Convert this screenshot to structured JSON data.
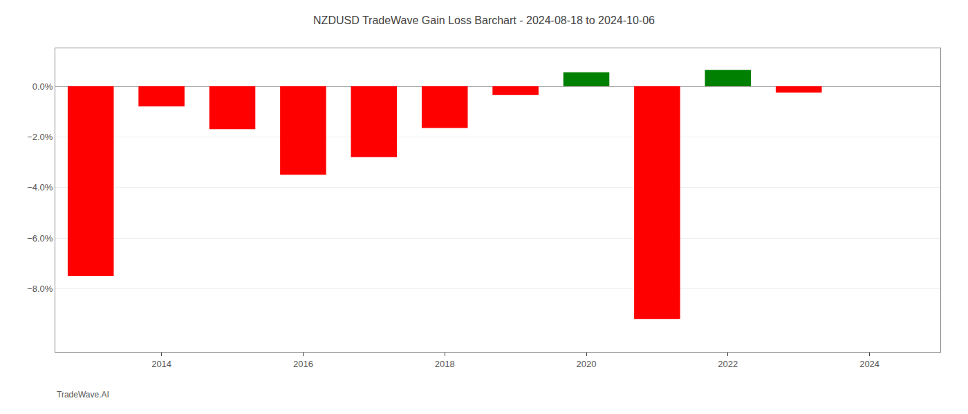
{
  "chart_data": {
    "type": "bar",
    "title": "NZDUSD TradeWave Gain Loss Barchart - 2024-08-18 to 2024-10-06",
    "annotations": [
      "TradeWave.AI"
    ],
    "x": [
      2013,
      2014,
      2015,
      2016,
      2017,
      2018,
      2019,
      2020,
      2021,
      2022,
      2023
    ],
    "values": [
      -7.5,
      -0.8,
      -1.7,
      -3.5,
      -2.8,
      -1.65,
      -0.35,
      0.55,
      -9.2,
      0.65,
      -0.25
    ],
    "colors": [
      "#ff0000",
      "#ff0000",
      "#ff0000",
      "#ff0000",
      "#ff0000",
      "#ff0000",
      "#ff0000",
      "#008000",
      "#ff0000",
      "#008000",
      "#ff0000"
    ],
    "xlim": [
      2012.5,
      2025.0
    ],
    "xticks": [
      2014,
      2016,
      2018,
      2020,
      2022,
      2024
    ],
    "ylim": [
      -10.5,
      1.5
    ],
    "yticks": [
      {
        "value": 0.0,
        "label": "0.0%"
      },
      {
        "value": -2.0,
        "label": "−2.0%"
      },
      {
        "value": -4.0,
        "label": "−4.0%"
      },
      {
        "value": -6.0,
        "label": "−6.0%"
      },
      {
        "value": -8.0,
        "label": "−8.0%"
      }
    ],
    "grid": true
  }
}
